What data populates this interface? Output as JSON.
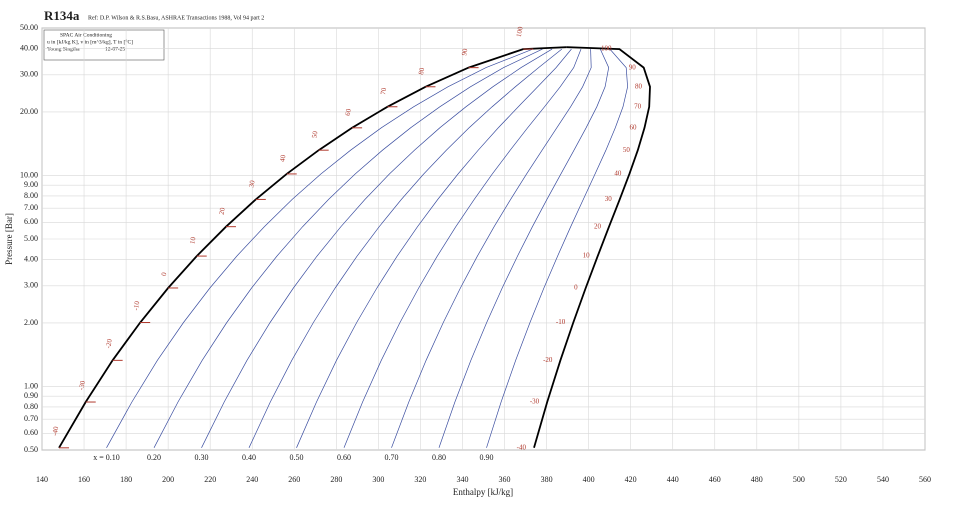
{
  "chart_data": {
    "type": "line",
    "title": "R134a",
    "subtitle": "Ref: D.P. Wilson & R.S.Basu, ASHRAE Transactions 1988, Vol 94 part 2",
    "info_lines": [
      "SPAC Air Conditioning",
      "u in [kJ/kg K], v in [m^3/kg], T in [°C]",
      "Young Singtha",
      "12-07-25"
    ],
    "x_label": "Enthalpy [kJ/kg]",
    "y_label": "Pressure [Bar]",
    "log_y": true,
    "grid": true,
    "xlim": [
      140,
      560
    ],
    "ylim": [
      0.5,
      50
    ],
    "xticks": [
      140,
      160,
      180,
      200,
      220,
      240,
      260,
      280,
      300,
      320,
      340,
      360,
      380,
      400,
      420,
      440,
      460,
      480,
      500,
      520,
      540,
      560
    ],
    "yticks": [
      {
        "value": 0.5,
        "label": "0.50"
      },
      {
        "value": 0.6,
        "label": "0.60"
      },
      {
        "value": 0.7,
        "label": "0.70"
      },
      {
        "value": 0.8,
        "label": "0.80"
      },
      {
        "value": 0.9,
        "label": "0.90"
      },
      {
        "value": 1,
        "label": "1.00"
      },
      {
        "value": 2,
        "label": "2.00"
      },
      {
        "value": 3,
        "label": "3.00"
      },
      {
        "value": 4,
        "label": "4.00"
      },
      {
        "value": 5,
        "label": "5.00"
      },
      {
        "value": 6,
        "label": "6.00"
      },
      {
        "value": 7,
        "label": "7.00"
      },
      {
        "value": 8,
        "label": "8.00"
      },
      {
        "value": 9,
        "label": "9.00"
      },
      {
        "value": 10,
        "label": "10.00"
      },
      {
        "value": 20,
        "label": "20.00"
      },
      {
        "value": 30,
        "label": "30.00"
      },
      {
        "value": 40,
        "label": "40.00"
      },
      {
        "value": 50,
        "label": "50.00"
      }
    ],
    "temperatures": [
      -40,
      -30,
      -20,
      -10,
      0,
      10,
      20,
      30,
      40,
      50,
      60,
      70,
      80,
      90,
      100
    ],
    "temperature_color": "#b03a2e",
    "series": [
      {
        "color": "#000000",
        "x": [
          148.1,
          160.8,
          173.6,
          186.7,
          200,
          213.6,
          227.5,
          241.7,
          256.4,
          271.6,
          287.5,
          304.3,
          322.4,
          342.9,
          368.9,
          389.6
        ],
        "values": [
          0.512,
          0.844,
          1.33,
          2.01,
          2.93,
          4.15,
          5.72,
          7.7,
          10.17,
          13.18,
          16.82,
          21.17,
          26.33,
          32.44,
          39.72,
          40.59
        ]
      },
      {
        "color": "#000000",
        "x": [
          374,
          380.3,
          386.6,
          392.7,
          398.6,
          404.3,
          409.7,
          414.8,
          419.4,
          423.4,
          426.6,
          428.8,
          429.2,
          426.2,
          414.7,
          389.6
        ],
        "values": [
          0.512,
          0.844,
          1.33,
          2.01,
          2.93,
          4.15,
          5.72,
          7.7,
          10.17,
          13.18,
          16.82,
          21.17,
          26.33,
          32.44,
          39.72,
          40.59
        ]
      }
    ],
    "quality_color": "#3b4ea0",
    "quality_lines": [
      {
        "value": 0.1,
        "label": "x = 0.10"
      },
      {
        "value": 0.2,
        "label": "0.20"
      },
      {
        "value": 0.3,
        "label": "0.30"
      },
      {
        "value": 0.4,
        "label": "0.40"
      },
      {
        "value": 0.5,
        "label": "0.50"
      },
      {
        "value": 0.6,
        "label": "0.60"
      },
      {
        "value": 0.7,
        "label": "0.70"
      },
      {
        "value": 0.8,
        "label": "0.80"
      },
      {
        "value": 0.9,
        "label": "0.90"
      }
    ]
  }
}
